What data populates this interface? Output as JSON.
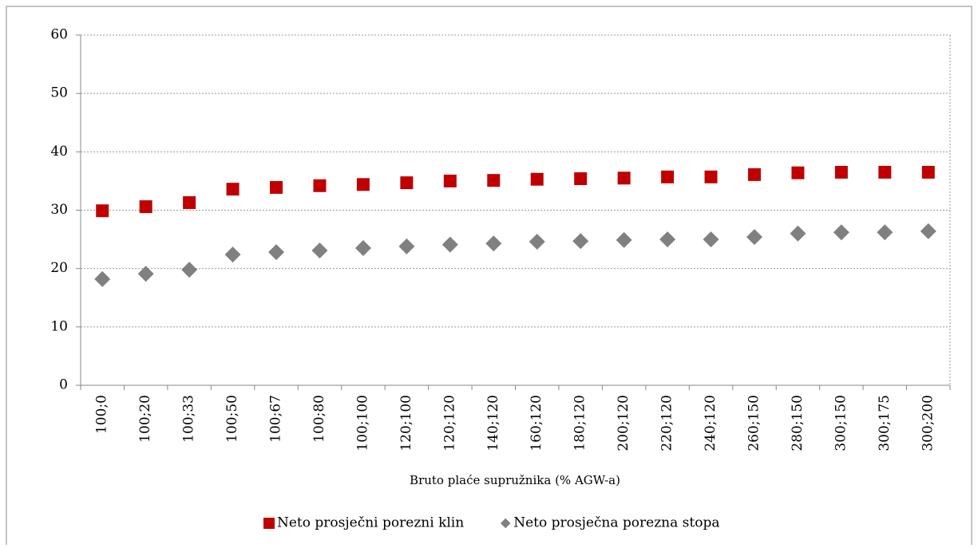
{
  "chart_data": {
    "type": "scatter",
    "x_label": "Bruto plaće supružnika (% AGW-a)",
    "categories": [
      "100;0",
      "100;20",
      "100;33",
      "100;50",
      "100;67",
      "100;80",
      "100;100",
      "120;100",
      "120;120",
      "140;120",
      "160;120",
      "180;120",
      "200;120",
      "220;120",
      "240;120",
      "260;150",
      "280;150",
      "300;150",
      "300;175",
      "300;200"
    ],
    "series": [
      {
        "name": "Neto prosječni porezni klin",
        "color": "#c00000",
        "marker": "square",
        "values": [
          29.9,
          30.6,
          31.3,
          33.6,
          33.9,
          34.2,
          34.4,
          34.7,
          35.0,
          35.1,
          35.3,
          35.4,
          35.5,
          35.7,
          35.7,
          36.1,
          36.4,
          36.5,
          36.5,
          36.5
        ]
      },
      {
        "name": "Neto prosječna porezna stopa",
        "color": "#808080",
        "marker": "diamond",
        "values": [
          18.2,
          19.1,
          19.8,
          22.4,
          22.8,
          23.1,
          23.5,
          23.8,
          24.1,
          24.3,
          24.6,
          24.7,
          24.9,
          25.0,
          25.0,
          25.4,
          26.0,
          26.2,
          26.2,
          26.4
        ]
      }
    ],
    "ylim": [
      0,
      60
    ],
    "yticks": [
      0,
      10,
      20,
      30,
      40,
      50,
      60
    ],
    "grid": true,
    "legend": "bottom"
  }
}
